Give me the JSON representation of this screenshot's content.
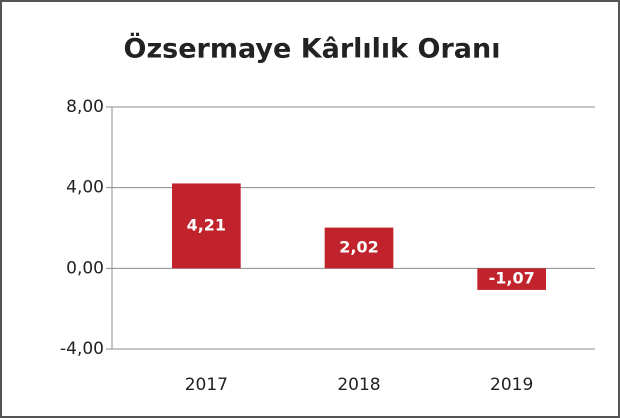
{
  "chart_data": {
    "type": "bar",
    "title": "Özsermaye Kârlılık Oranı",
    "categories": [
      "2017",
      "2018",
      "2019"
    ],
    "values": [
      4.21,
      2.02,
      -1.07
    ],
    "value_labels": [
      "4,21",
      "2,02",
      "-1,07"
    ],
    "color": "#c0232b",
    "ylim": [
      -4,
      8
    ],
    "yticks": [
      {
        "value": 8,
        "label": "8,00"
      },
      {
        "value": 4,
        "label": "4,00"
      },
      {
        "value": 0,
        "label": "0,00"
      },
      {
        "value": -4,
        "label": "-4,00"
      }
    ],
    "grid": true
  }
}
